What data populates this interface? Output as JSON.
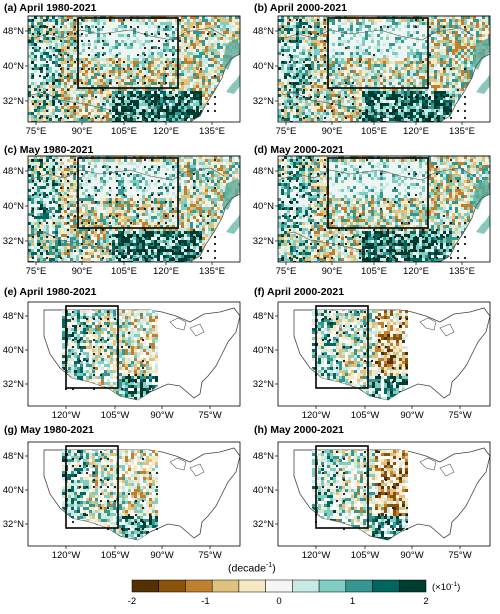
{
  "panels": [
    {
      "id": "a",
      "title": "(a) April 1980-2021",
      "region": "asia"
    },
    {
      "id": "b",
      "title": "(b) April 2000-2021",
      "region": "asia"
    },
    {
      "id": "c",
      "title": "(c) May 1980-2021",
      "region": "asia"
    },
    {
      "id": "d",
      "title": "(d) May 2000-2021",
      "region": "asia"
    },
    {
      "id": "e",
      "title": "(e) April 1980-2021",
      "region": "us"
    },
    {
      "id": "f",
      "title": "(f) April 2000-2021",
      "region": "us"
    },
    {
      "id": "g",
      "title": "(g) May 1980-2021",
      "region": "us"
    },
    {
      "id": "h",
      "title": "(h) May 2000-2021",
      "region": "us"
    }
  ],
  "asia_axes": {
    "lon_ticks": [
      "75°E",
      "90°E",
      "105°E",
      "120°E",
      "135°E"
    ],
    "lat_ticks": [
      "48°N",
      "40°N",
      "32°N"
    ]
  },
  "us_axes": {
    "lon_ticks": [
      "120°W",
      "105°W",
      "90°W",
      "75°W"
    ],
    "lat_ticks": [
      "48°N",
      "40°N",
      "32°N"
    ]
  },
  "colorbar": {
    "title": "(decade",
    "title_exp": "-1",
    "title_close": ")",
    "multiplier": "(×10",
    "multiplier_exp": "-1",
    "multiplier_close": ")",
    "tick_labels": [
      "-2",
      "-1",
      "0",
      "1",
      "2"
    ],
    "colors": [
      "#543005",
      "#8c510a",
      "#bf812d",
      "#dfc27d",
      "#f6e8c3",
      "#f5f5f5",
      "#c7eae5",
      "#80cdc1",
      "#35978f",
      "#01665e",
      "#003c30"
    ]
  }
}
